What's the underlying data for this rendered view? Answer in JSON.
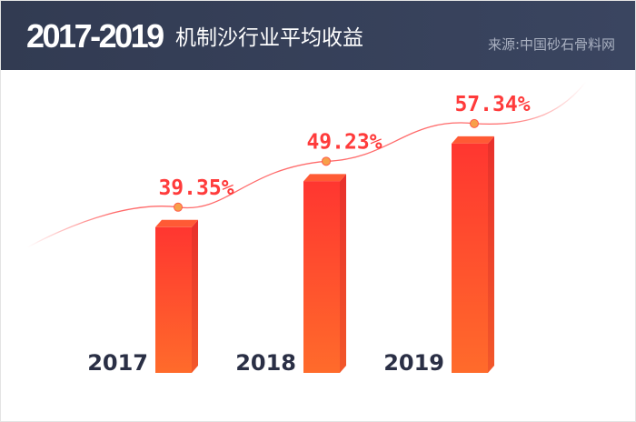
{
  "header": {
    "title_years": "2017-2019",
    "title_text": "机制沙行业平均收益",
    "source": "来源:中国砂石骨料网"
  },
  "colors": {
    "header_bg": "#343e57",
    "bar_top": "#ff3a2f",
    "bar_bottom": "#ff6a2a",
    "label": "#ff3b3b",
    "year_label": "#2a2f45",
    "marker": "#f7a04a"
  },
  "chart_data": {
    "type": "bar",
    "title": "2017-2019 机制沙行业平均收益",
    "categories": [
      "2017",
      "2018",
      "2019"
    ],
    "values": [
      39.35,
      49.23,
      57.34
    ],
    "labels": [
      "39.35%",
      "49.23%",
      "57.34%"
    ],
    "unit": "%",
    "style": "3d bars with overlaid smooth trend line and point markers",
    "grid": false,
    "axes_visible": false
  }
}
